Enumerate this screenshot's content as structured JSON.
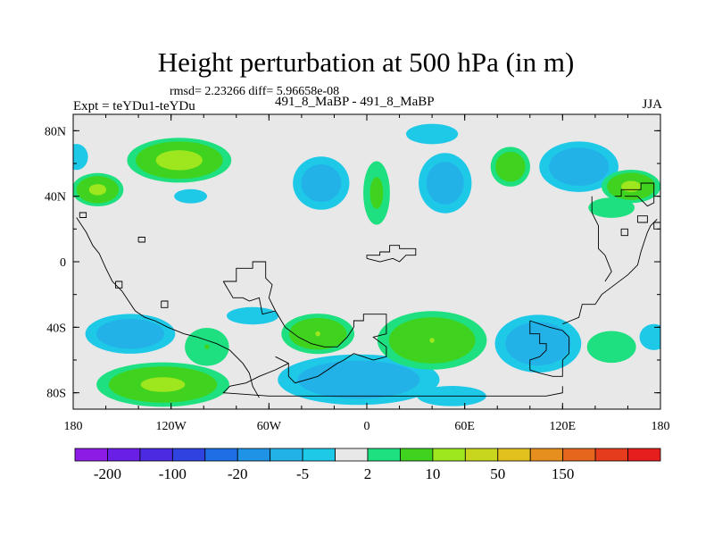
{
  "chart_data": {
    "type": "heatmap",
    "title": "Height perturbation at 500 hPa (in m)",
    "subtitle": "rmsd= 2.23266 diff= 5.96658e-08",
    "left_label": "Expt = teYDu1-teYDu",
    "center_label": "491_8_MaBP - 491_8_MaBP",
    "right_label": "JJA",
    "x_range": [
      -180,
      180
    ],
    "y_range": [
      -90,
      90
    ],
    "x_ticks": [
      {
        "value": -180,
        "label": "180"
      },
      {
        "value": -120,
        "label": "120W"
      },
      {
        "value": -60,
        "label": "60W"
      },
      {
        "value": 0,
        "label": "0"
      },
      {
        "value": 60,
        "label": "60E"
      },
      {
        "value": 120,
        "label": "120E"
      },
      {
        "value": 180,
        "label": "180"
      }
    ],
    "y_ticks": [
      {
        "value": 80,
        "label": "80N"
      },
      {
        "value": 40,
        "label": "40N"
      },
      {
        "value": 0,
        "label": "0"
      },
      {
        "value": -40,
        "label": "40S"
      },
      {
        "value": -80,
        "label": "80S"
      }
    ],
    "colorbar": {
      "colors": [
        "#8c1be6",
        "#6a1fe6",
        "#4b2ae2",
        "#2f43e0",
        "#1e6fe6",
        "#1f94e6",
        "#22b2e8",
        "#1ec9e8",
        "#e8e8e8",
        "#1ee080",
        "#3fd320",
        "#9ee61e",
        "#c8d71e",
        "#e2c01e",
        "#e68f1e",
        "#e6661e",
        "#e63c1e",
        "#e61e1e"
      ],
      "labels": [
        {
          "boundary": 1,
          "label": "-200"
        },
        {
          "boundary": 3,
          "label": "-100"
        },
        {
          "boundary": 5,
          "label": "-20"
        },
        {
          "boundary": 7,
          "label": "-5"
        },
        {
          "boundary": 9,
          "label": "2"
        },
        {
          "boundary": 11,
          "label": "10"
        },
        {
          "boundary": 13,
          "label": "50"
        },
        {
          "boundary": 15,
          "label": "150"
        }
      ]
    },
    "anomalies": [
      {
        "name": "nh-pos-1",
        "lon": -115,
        "lat": 62,
        "rx": 28,
        "ry": 12,
        "value": 12
      },
      {
        "name": "nh-pos-2",
        "lon": -165,
        "lat": 44,
        "rx": 14,
        "ry": 9,
        "value": 11
      },
      {
        "name": "nh-neg-1",
        "lon": -28,
        "lat": 48,
        "rx": 16,
        "ry": 15,
        "value": -8
      },
      {
        "name": "nh-pos-3",
        "lon": 6,
        "lat": 42,
        "rx": 8,
        "ry": 19,
        "value": 6
      },
      {
        "name": "nh-neg-2",
        "lon": 48,
        "lat": 48,
        "rx": 15,
        "ry": 17,
        "value": -8
      },
      {
        "name": "nh-neg-3",
        "lon": 40,
        "lat": 78,
        "rx": 18,
        "ry": 7,
        "value": -4
      },
      {
        "name": "nh-pos-4",
        "lon": 88,
        "lat": 58,
        "rx": 11,
        "ry": 11,
        "value": 9
      },
      {
        "name": "nh-neg-4",
        "lon": 130,
        "lat": 58,
        "rx": 22,
        "ry": 14,
        "value": -9
      },
      {
        "name": "nh-pos-5",
        "lon": 162,
        "lat": 46,
        "rx": 16,
        "ry": 9,
        "value": 11
      },
      {
        "name": "nh-neg-5",
        "lon": -178,
        "lat": 64,
        "rx": 8,
        "ry": 9,
        "value": -4
      },
      {
        "name": "nh-pos-6",
        "lon": 150,
        "lat": 33,
        "rx": 16,
        "ry": 7,
        "value": 4
      },
      {
        "name": "nh-neg-6",
        "lon": -108,
        "lat": 40,
        "rx": 14,
        "ry": 6,
        "value": -3
      },
      {
        "name": "sh-neg-1",
        "lon": -145,
        "lat": -44,
        "rx": 25,
        "ry": 11,
        "value": -9
      },
      {
        "name": "sh-pos-1",
        "lon": -125,
        "lat": -75,
        "rx": 36,
        "ry": 12,
        "value": 11
      },
      {
        "name": "sh-pos-2",
        "lon": -98,
        "lat": -52,
        "rx": 14,
        "ry": 12,
        "value": 5
      },
      {
        "name": "sh-neg-2",
        "lon": -70,
        "lat": -33,
        "rx": 18,
        "ry": 6,
        "value": -4
      },
      {
        "name": "sh-pos-3",
        "lon": -30,
        "lat": -44,
        "rx": 20,
        "ry": 11,
        "value": 10
      },
      {
        "name": "sh-neg-3",
        "lon": -5,
        "lat": -72,
        "rx": 45,
        "ry": 14,
        "value": -9
      },
      {
        "name": "sh-pos-4",
        "lon": 40,
        "lat": -48,
        "rx": 30,
        "ry": 16,
        "value": 10
      },
      {
        "name": "sh-neg-4",
        "lon": 105,
        "lat": -50,
        "rx": 24,
        "ry": 16,
        "value": -9
      },
      {
        "name": "sh-pos-5",
        "lon": 150,
        "lat": -52,
        "rx": 17,
        "ry": 11,
        "value": 4
      },
      {
        "name": "sh-neg-5",
        "lon": 176,
        "lat": -46,
        "rx": 10,
        "ry": 9,
        "value": -4
      },
      {
        "name": "sh-neg-6",
        "lon": 52,
        "lat": -82,
        "rx": 24,
        "ry": 7,
        "value": -4
      }
    ],
    "coastlines": [
      [
        [
          -178,
          27
        ],
        [
          -172,
          18
        ],
        [
          -168,
          10
        ],
        [
          -164,
          5
        ],
        [
          -160,
          -4
        ],
        [
          -156,
          -12
        ],
        [
          -150,
          -18
        ],
        [
          -146,
          -24
        ],
        [
          -142,
          -30
        ],
        [
          -136,
          -34
        ],
        [
          -130,
          -36
        ],
        [
          -122,
          -40
        ],
        [
          -112,
          -44
        ],
        [
          -104,
          -46
        ],
        [
          -98,
          -48
        ],
        [
          -92,
          -50
        ],
        [
          -84,
          -54
        ],
        [
          -76,
          -62
        ],
        [
          -72,
          -68
        ],
        [
          -70,
          -76
        ],
        [
          -66,
          -83
        ]
      ],
      [
        [
          -154,
          -12
        ],
        [
          -150,
          -12
        ],
        [
          -150,
          -16
        ],
        [
          -154,
          -16
        ],
        [
          -154,
          -12
        ]
      ],
      [
        [
          -126,
          -24
        ],
        [
          -122,
          -24
        ],
        [
          -122,
          -28
        ],
        [
          -126,
          -28
        ],
        [
          -126,
          -24
        ]
      ],
      [
        [
          -140,
          12
        ],
        [
          -136,
          12
        ],
        [
          -136,
          15
        ],
        [
          -140,
          15
        ],
        [
          -140,
          12
        ]
      ],
      [
        [
          -88,
          -12
        ],
        [
          -80,
          -12
        ],
        [
          -80,
          -4
        ],
        [
          -70,
          -4
        ],
        [
          -70,
          0
        ],
        [
          -62,
          0
        ],
        [
          -62,
          -10
        ],
        [
          -58,
          -14
        ],
        [
          -60,
          -22
        ],
        [
          -56,
          -30
        ],
        [
          -64,
          -32
        ],
        [
          -66,
          -22
        ],
        [
          -72,
          -24
        ],
        [
          -76,
          -22
        ],
        [
          -82,
          -22
        ],
        [
          -88,
          -12
        ]
      ],
      [
        [
          -56,
          -30
        ],
        [
          -50,
          -40
        ],
        [
          -42,
          -46
        ],
        [
          -34,
          -50
        ],
        [
          -26,
          -52
        ],
        [
          -18,
          -52
        ],
        [
          -12,
          -46
        ],
        [
          -8,
          -40
        ],
        [
          -8,
          -36
        ],
        [
          -2,
          -36
        ],
        [
          -2,
          -32
        ],
        [
          12,
          -32
        ],
        [
          12,
          -44
        ],
        [
          4,
          -46
        ],
        [
          12,
          -52
        ],
        [
          12,
          -58
        ],
        [
          4,
          -60
        ],
        [
          -2,
          -58
        ],
        [
          -8,
          -56
        ],
        [
          -14,
          -60
        ],
        [
          -18,
          -62
        ],
        [
          -30,
          -70
        ],
        [
          -44,
          -74
        ],
        [
          -48,
          -70
        ],
        [
          -48,
          -62
        ],
        [
          -56,
          -58
        ]
      ],
      [
        [
          -48,
          -62
        ],
        [
          -56,
          -66
        ],
        [
          -66,
          -70
        ],
        [
          -74,
          -74
        ],
        [
          -84,
          -76
        ],
        [
          -88,
          -80
        ],
        [
          -60,
          -82
        ],
        [
          -30,
          -82
        ],
        [
          0,
          -82
        ],
        [
          40,
          -82
        ],
        [
          80,
          -82
        ],
        [
          110,
          -82
        ],
        [
          120,
          -80
        ],
        [
          120,
          -76
        ]
      ],
      [
        [
          0,
          2
        ],
        [
          0,
          4
        ],
        [
          8,
          4
        ],
        [
          8,
          6
        ],
        [
          14,
          6
        ],
        [
          14,
          10
        ],
        [
          20,
          10
        ],
        [
          20,
          8
        ],
        [
          30,
          8
        ],
        [
          30,
          4
        ],
        [
          24,
          4
        ],
        [
          20,
          0
        ],
        [
          16,
          2
        ],
        [
          8,
          0
        ],
        [
          0,
          2
        ]
      ],
      [
        [
          100,
          -36
        ],
        [
          100,
          -44
        ],
        [
          106,
          -44
        ],
        [
          106,
          -50
        ],
        [
          110,
          -50
        ],
        [
          110,
          -54
        ],
        [
          106,
          -58
        ],
        [
          100,
          -60
        ],
        [
          100,
          -66
        ],
        [
          106,
          -68
        ],
        [
          114,
          -70
        ],
        [
          120,
          -70
        ],
        [
          120,
          -60
        ],
        [
          124,
          -56
        ],
        [
          124,
          -46
        ],
        [
          120,
          -42
        ],
        [
          112,
          -40
        ],
        [
          106,
          -38
        ],
        [
          100,
          -36
        ]
      ],
      [
        [
          120,
          -38
        ],
        [
          130,
          -34
        ],
        [
          132,
          -26
        ],
        [
          140,
          -26
        ],
        [
          144,
          -20
        ],
        [
          152,
          -14
        ],
        [
          160,
          -8
        ],
        [
          166,
          -2
        ],
        [
          168,
          6
        ],
        [
          170,
          12
        ],
        [
          172,
          18
        ],
        [
          174,
          22
        ],
        [
          178,
          26
        ]
      ],
      [
        [
          138,
          40
        ],
        [
          138,
          30
        ],
        [
          142,
          22
        ],
        [
          142,
          8
        ],
        [
          146,
          4
        ],
        [
          150,
          -6
        ],
        [
          146,
          -12
        ]
      ],
      [
        [
          152,
          40
        ],
        [
          156,
          40
        ],
        [
          156,
          44
        ],
        [
          168,
          44
        ],
        [
          168,
          48
        ],
        [
          176,
          48
        ],
        [
          176,
          36
        ],
        [
          172,
          34
        ],
        [
          166,
          40
        ],
        [
          158,
          40
        ]
      ],
      [
        [
          156,
          16
        ],
        [
          160,
          16
        ],
        [
          160,
          20
        ],
        [
          156,
          20
        ],
        [
          156,
          16
        ]
      ],
      [
        [
          166,
          24
        ],
        [
          172,
          24
        ],
        [
          172,
          28
        ],
        [
          166,
          28
        ],
        [
          166,
          24
        ]
      ],
      [
        [
          -176,
          27
        ],
        [
          -172,
          27
        ],
        [
          -172,
          30
        ],
        [
          -176,
          30
        ],
        [
          -176,
          27
        ]
      ],
      [
        [
          180,
          24
        ],
        [
          176,
          24
        ],
        [
          176,
          20
        ],
        [
          180,
          20
        ]
      ]
    ]
  }
}
